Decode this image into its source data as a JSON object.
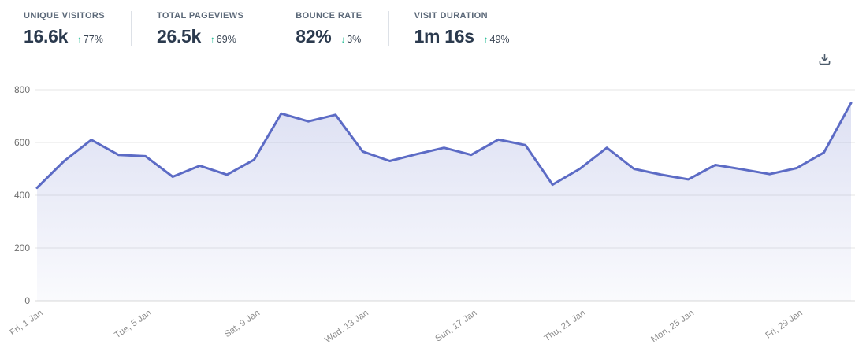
{
  "stats": [
    {
      "label": "UNIQUE VISITORS",
      "value": "16.6k",
      "arrow": "↑",
      "delta": "77%",
      "direction": "up"
    },
    {
      "label": "TOTAL PAGEVIEWS",
      "value": "26.5k",
      "arrow": "↑",
      "delta": "69%",
      "direction": "up"
    },
    {
      "label": "BOUNCE RATE",
      "value": "82%",
      "arrow": "↓",
      "delta": "3%",
      "direction": "down"
    },
    {
      "label": "VISIT DURATION",
      "value": "1m 16s",
      "arrow": "↑",
      "delta": "49%",
      "direction": "up"
    }
  ],
  "toolbar": {
    "download_icon": "download-icon"
  },
  "chart_data": {
    "type": "area",
    "values": [
      428,
      530,
      610,
      553,
      548,
      470,
      512,
      478,
      535,
      710,
      680,
      705,
      566,
      530,
      556,
      580,
      553,
      611,
      590,
      440,
      500,
      580,
      500,
      478,
      460,
      515,
      498,
      480,
      503,
      562,
      750
    ],
    "x_tick_labels": [
      "Fri, 1 Jan",
      "Tue, 5 Jan",
      "Sat, 9 Jan",
      "Wed, 13 Jan",
      "Sun, 17 Jan",
      "Thu, 21 Jan",
      "Mon, 25 Jan",
      "Fri, 29 Jan"
    ],
    "x_tick_indices": [
      0,
      4,
      8,
      12,
      16,
      20,
      24,
      28
    ],
    "y_ticks": [
      0,
      200,
      400,
      600,
      800
    ],
    "ylim": [
      0,
      800
    ],
    "grid": true,
    "legend": false
  },
  "colors": {
    "accent_line": "#5c6bc5",
    "area_top": "rgba(92,107,197,0.22)",
    "area_bottom": "rgba(92,107,197,0.03)",
    "gridline": "#e6e6e6",
    "axis_line": "#d8d8d8",
    "axis_label": "#6f6f6f",
    "x_label": "#8d8d8d",
    "positive": "#1fbc92",
    "divider": "#dde1e7",
    "icon": "#4e5d6d"
  }
}
